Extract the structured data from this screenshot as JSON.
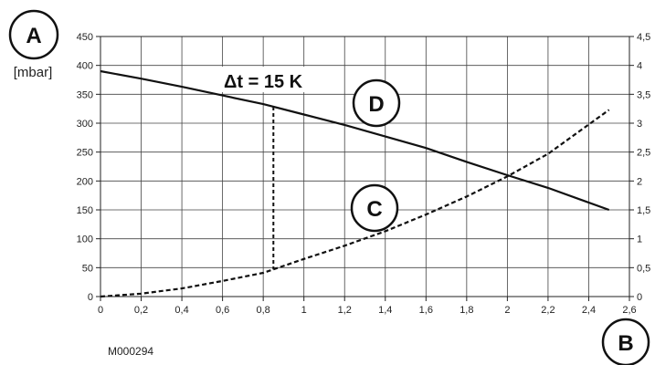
{
  "chart_data": {
    "type": "line",
    "left_axis": {
      "callout": "A",
      "unit": "[mbar]",
      "ylim": [
        0,
        450
      ],
      "ticks": [
        "0",
        "50",
        "100",
        "150",
        "200",
        "250",
        "300",
        "350",
        "400",
        "450"
      ]
    },
    "right_axis": {
      "ylim": [
        0,
        4.5
      ],
      "ticks": [
        "0",
        "0,5",
        "1",
        "1,5",
        "2",
        "2,5",
        "3",
        "3,5",
        "4",
        "4,5"
      ]
    },
    "x_axis": {
      "callout": "B",
      "xlim": [
        0,
        2.6
      ],
      "ticks": [
        "0",
        "0,2",
        "0,4",
        "0,6",
        "0,8",
        "1",
        "1,2",
        "1,4",
        "1,6",
        "1,8",
        "2",
        "2,2",
        "2,4",
        "2,6"
      ]
    },
    "grid": true,
    "series": [
      {
        "callout": "D",
        "style": "solid",
        "x": [
          0,
          0.2,
          0.4,
          0.6,
          0.8,
          1.0,
          1.2,
          1.4,
          1.6,
          1.8,
          2.0,
          2.2,
          2.5
        ],
        "y": [
          390,
          377,
          363,
          348,
          333,
          315,
          297,
          277,
          257,
          233,
          210,
          188,
          150
        ]
      },
      {
        "callout": "C",
        "style": "dashed",
        "x": [
          0,
          0.2,
          0.4,
          0.6,
          0.8,
          1.0,
          1.2,
          1.4,
          1.6,
          1.8,
          2.0,
          2.2,
          2.5
        ],
        "y": [
          0,
          5,
          14,
          27,
          41,
          65,
          88,
          113,
          142,
          173,
          208,
          247,
          323
        ]
      }
    ],
    "annotation": {
      "label": "Δt = 15 K",
      "x": 0.85
    },
    "figure_ref": "M000294"
  }
}
